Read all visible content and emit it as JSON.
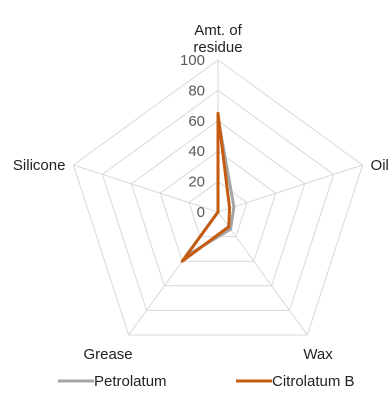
{
  "chart_data": {
    "type": "radar",
    "axes": [
      "Amt. of residue",
      "Oil",
      "Wax",
      "Grease",
      "Silicone"
    ],
    "axis_label_lines": [
      [
        "Amt. of",
        "residue"
      ],
      [
        "Oil"
      ],
      [
        "Wax"
      ],
      [
        "Grease"
      ],
      [
        "Silicone"
      ]
    ],
    "rlim": [
      0,
      100
    ],
    "ticks": [
      "0",
      "20",
      "40",
      "60",
      "80",
      "100"
    ],
    "series": [
      {
        "name": "Petrolatum",
        "color": "#a5a5a5",
        "values": [
          62,
          11,
          14,
          36,
          0
        ]
      },
      {
        "name": "Citrolatum B",
        "color": "#c55a11",
        "values": [
          65,
          8,
          12,
          40,
          0
        ]
      }
    ],
    "grid": true,
    "legend_position": "bottom"
  }
}
